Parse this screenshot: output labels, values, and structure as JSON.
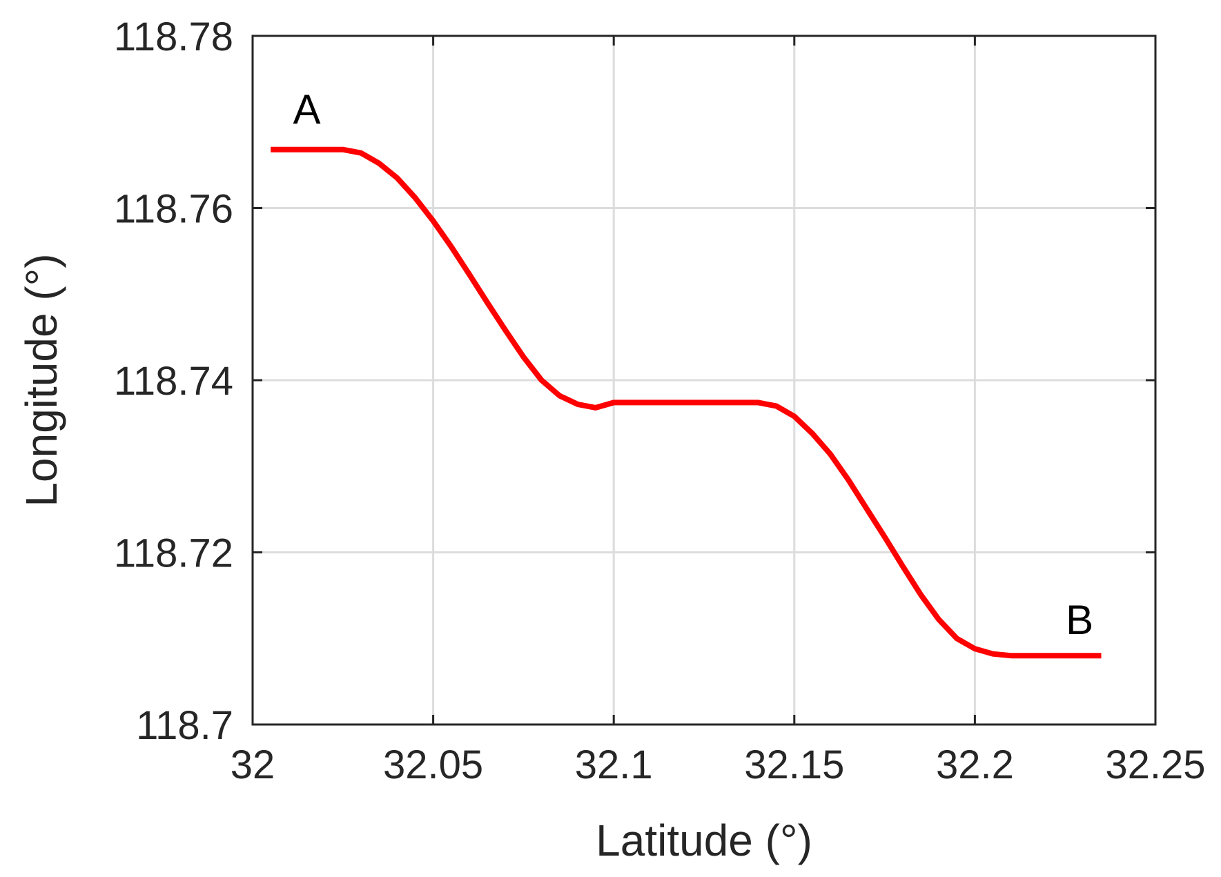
{
  "chart_data": {
    "type": "line",
    "xlabel": "Latitude (°)",
    "ylabel": "Longitude (°)",
    "xlim": [
      32,
      32.25
    ],
    "ylim": [
      118.7,
      118.78
    ],
    "x_ticks": [
      32,
      32.05,
      32.1,
      32.15,
      32.2,
      32.25
    ],
    "x_tick_labels": [
      "32",
      "32.05",
      "32.1",
      "32.15",
      "32.2",
      "32.25"
    ],
    "y_ticks": [
      118.7,
      118.72,
      118.74,
      118.76,
      118.78
    ],
    "y_tick_labels": [
      "118.7",
      "118.72",
      "118.74",
      "118.76",
      "118.78"
    ],
    "grid": true,
    "series": [
      {
        "color": "#ff0000",
        "x": [
          32.005,
          32.01,
          32.015,
          32.02,
          32.025,
          32.03,
          32.035,
          32.04,
          32.045,
          32.05,
          32.055,
          32.06,
          32.065,
          32.07,
          32.075,
          32.08,
          32.085,
          32.09,
          32.095,
          32.1,
          32.105,
          32.11,
          32.115,
          32.12,
          32.125,
          32.13,
          32.135,
          32.14,
          32.145,
          32.15,
          32.155,
          32.16,
          32.165,
          32.17,
          32.175,
          32.18,
          32.185,
          32.19,
          32.195,
          32.2,
          32.205,
          32.21,
          32.215,
          32.22,
          32.225,
          32.23,
          32.235
        ],
        "y": [
          118.7668,
          118.7668,
          118.7668,
          118.7668,
          118.7668,
          118.7664,
          118.7652,
          118.7635,
          118.7612,
          118.7585,
          118.7555,
          118.7523,
          118.749,
          118.7458,
          118.7427,
          118.74,
          118.7382,
          118.7372,
          118.7368,
          118.7374,
          118.7374,
          118.7374,
          118.7374,
          118.7374,
          118.7374,
          118.7374,
          118.7374,
          118.7374,
          118.737,
          118.7358,
          118.7338,
          118.7314,
          118.7284,
          118.7251,
          118.7218,
          118.7184,
          118.7151,
          118.7122,
          118.71,
          118.7088,
          118.7082,
          118.708,
          118.708,
          118.708,
          118.708,
          118.708,
          118.708
        ]
      }
    ],
    "annotations": [
      {
        "text": "A",
        "x": 32.015,
        "y": 118.7698
      },
      {
        "text": "B",
        "x": 32.229,
        "y": 118.7105
      }
    ]
  }
}
